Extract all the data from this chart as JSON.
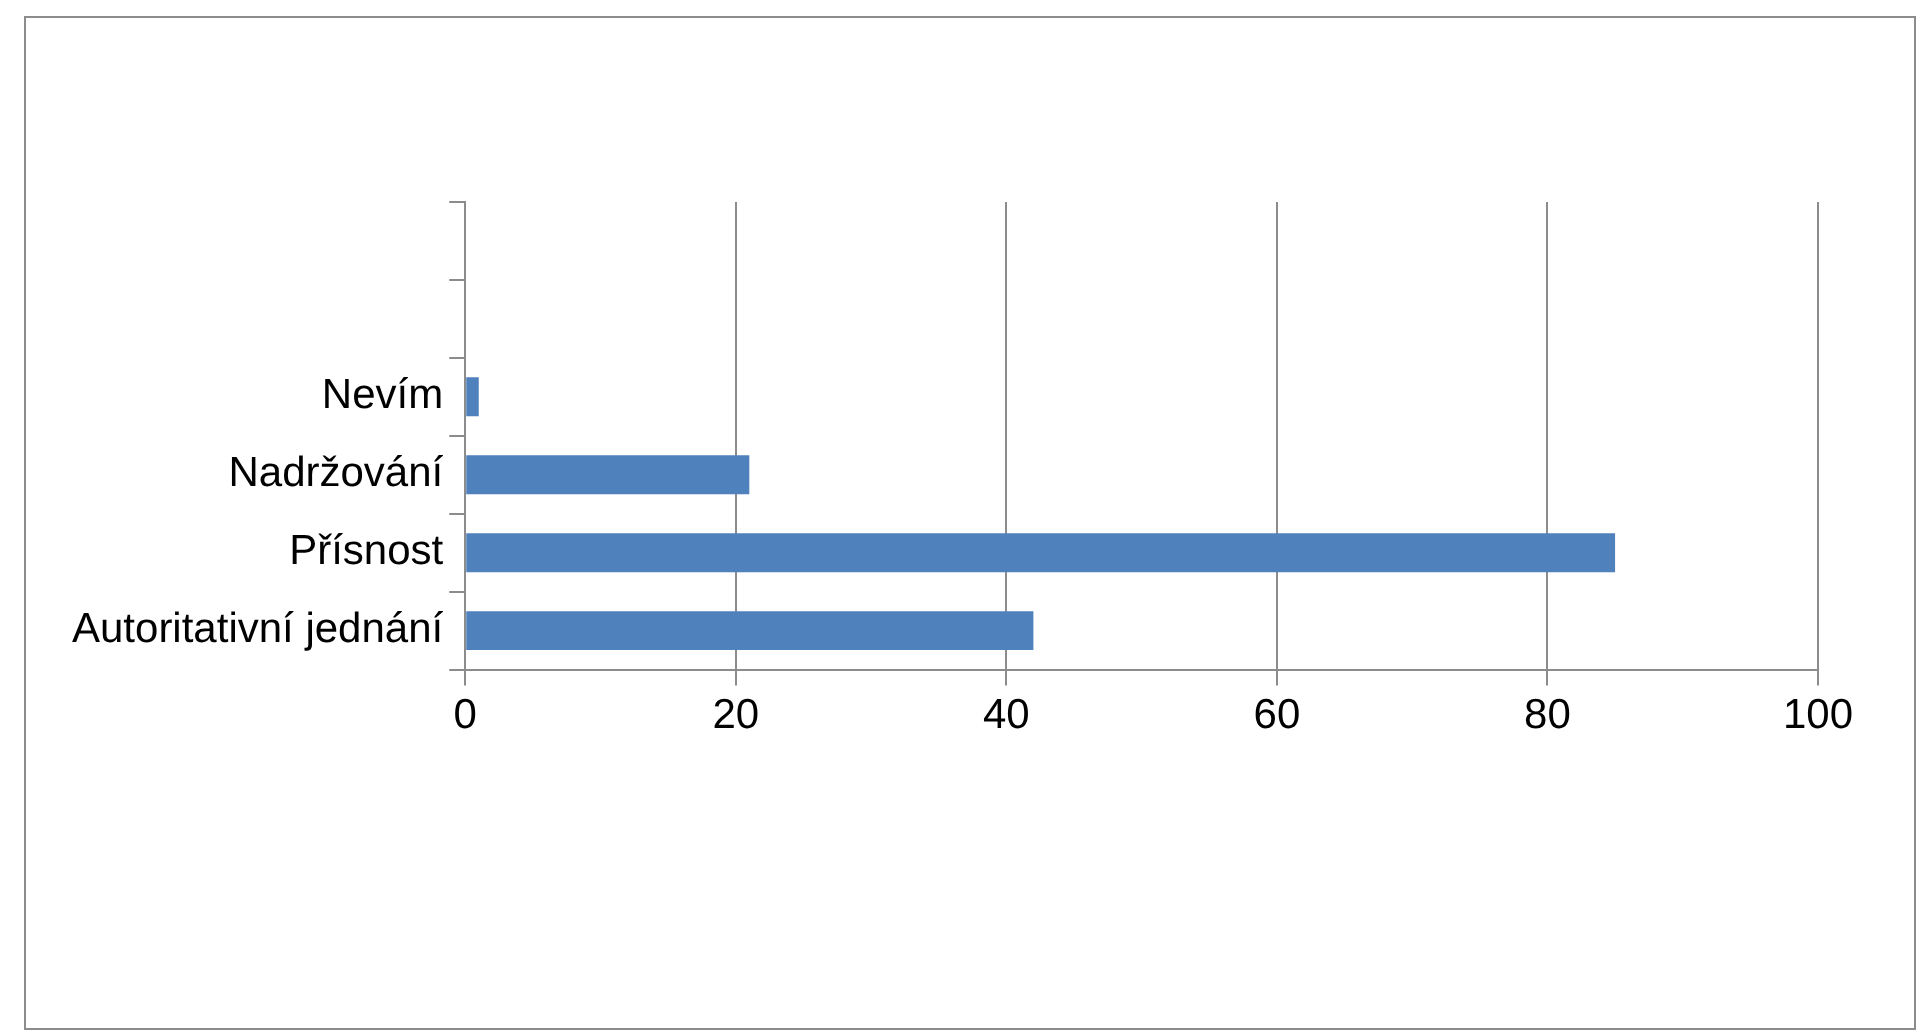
{
  "chart_data": {
    "type": "bar",
    "orientation": "horizontal",
    "categories": [
      null,
      null,
      "Nevím",
      "Nadržování",
      "Přísnost",
      "Autoritativní jednání"
    ],
    "values": [
      null,
      null,
      1,
      21,
      85,
      42
    ],
    "color": "#4f81bd",
    "xlim": [
      0,
      100
    ],
    "xticks": [
      0,
      20,
      40,
      60,
      80,
      100
    ],
    "grid": "x",
    "legend": false
  }
}
